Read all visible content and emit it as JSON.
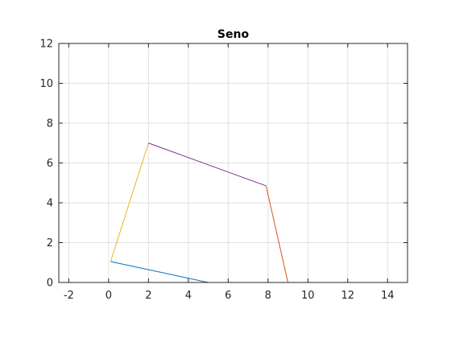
{
  "chart_data": {
    "type": "line",
    "title": "Seno",
    "xlabel": "",
    "ylabel": "",
    "xlim": [
      -2.5,
      15
    ],
    "ylim": [
      0,
      12
    ],
    "xticks": [
      -2,
      0,
      2,
      4,
      6,
      8,
      10,
      12,
      14
    ],
    "yticks": [
      0,
      2,
      4,
      6,
      8,
      10,
      12
    ],
    "grid": true,
    "series": [
      {
        "color": "#0072BD",
        "points": [
          [
            5.0,
            0.0
          ],
          [
            0.1,
            1.05
          ]
        ]
      },
      {
        "color": "#EDB120",
        "points": [
          [
            0.1,
            1.05
          ],
          [
            2.0,
            7.0
          ]
        ]
      },
      {
        "color": "#7E2F8E",
        "points": [
          [
            2.0,
            7.0
          ],
          [
            7.9,
            4.85
          ]
        ]
      },
      {
        "color": "#D95319",
        "points": [
          [
            7.9,
            4.85
          ],
          [
            9.0,
            0.0
          ]
        ]
      }
    ]
  }
}
